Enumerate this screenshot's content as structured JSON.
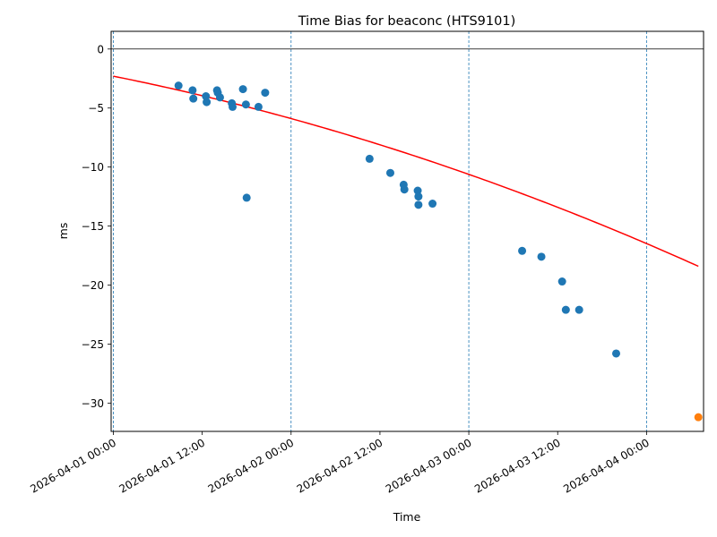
{
  "chart_data": {
    "type": "scatter",
    "title": "Time Bias for beaconc (HTS9101)",
    "xlabel": "Time",
    "ylabel": "ms",
    "x_ticks": [
      {
        "value": 0,
        "label": "2026-04-01 00:00"
      },
      {
        "value": 12,
        "label": "2026-04-01 12:00"
      },
      {
        "value": 24,
        "label": "2026-04-02 00:00"
      },
      {
        "value": 36,
        "label": "2026-04-02 12:00"
      },
      {
        "value": 48,
        "label": "2026-04-03 00:00"
      },
      {
        "value": 60,
        "label": "2026-04-03 12:00"
      },
      {
        "value": 72,
        "label": "2026-04-04 00:00"
      }
    ],
    "y_ticks": [
      0,
      -5,
      -10,
      -15,
      -20,
      -25,
      -30
    ],
    "xlim": [
      -0.3,
      79.7
    ],
    "ylim": [
      -32.4,
      1.5
    ],
    "day_boundaries": [
      0,
      24,
      48,
      72
    ],
    "zero_line": 0,
    "series": [
      {
        "kind": "scatter",
        "color": "#1f77b4",
        "points": [
          [
            8.8,
            -3.1
          ],
          [
            10.7,
            -3.5
          ],
          [
            10.8,
            -4.2
          ],
          [
            12.5,
            -4.0
          ],
          [
            12.6,
            -4.5
          ],
          [
            14.0,
            -3.5
          ],
          [
            14.1,
            -3.7
          ],
          [
            14.4,
            -4.1
          ],
          [
            16.0,
            -4.6
          ],
          [
            16.1,
            -4.9
          ],
          [
            17.5,
            -3.4
          ],
          [
            17.9,
            -4.7
          ],
          [
            19.6,
            -4.9
          ],
          [
            20.5,
            -3.7
          ],
          [
            18.0,
            -12.6
          ],
          [
            34.6,
            -9.3
          ],
          [
            37.4,
            -10.5
          ],
          [
            39.2,
            -11.5
          ],
          [
            39.3,
            -11.9
          ],
          [
            41.1,
            -12.0
          ],
          [
            41.2,
            -12.5
          ],
          [
            41.2,
            -13.2
          ],
          [
            43.1,
            -13.1
          ],
          [
            55.2,
            -17.1
          ],
          [
            57.8,
            -17.6
          ],
          [
            60.6,
            -19.7
          ],
          [
            61.1,
            -22.1
          ],
          [
            62.9,
            -22.1
          ],
          [
            67.9,
            -25.8
          ]
        ]
      },
      {
        "kind": "line",
        "color": "#ff0000",
        "fit": {
          "a": -0.000986,
          "b": -0.126,
          "c": -2.3
        },
        "x_range": [
          0,
          79.0
        ]
      },
      {
        "kind": "scatter",
        "color": "#ff7f0e",
        "points": [
          [
            79.0,
            -31.2
          ]
        ]
      }
    ]
  }
}
